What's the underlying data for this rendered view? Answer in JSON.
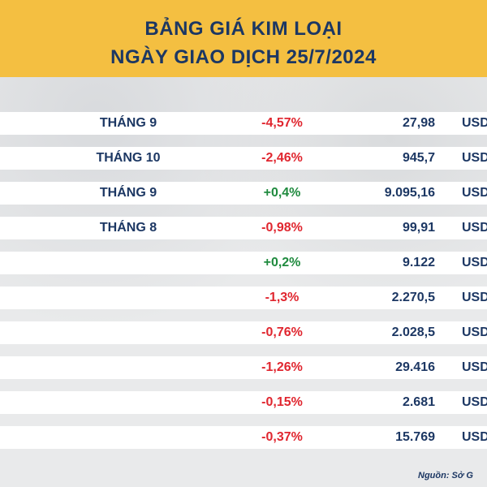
{
  "header": {
    "title_line1": "BẢNG GIÁ KIM LOẠI",
    "title_line2": "NGÀY GIAO DỊCH 25/7/2024"
  },
  "rows": [
    {
      "month": "THÁNG 9",
      "change": "-4,57%",
      "price": "27,98",
      "unit": "USD",
      "direction": "down"
    },
    {
      "month": "THÁNG 10",
      "change": "-2,46%",
      "price": "945,7",
      "unit": "USD",
      "direction": "down"
    },
    {
      "month": "THÁNG 9",
      "change": "+0,4%",
      "price": "9.095,16",
      "unit": "USD",
      "direction": "up"
    },
    {
      "month": "THÁNG 8",
      "change": "-0,98%",
      "price": "99,91",
      "unit": "USD",
      "direction": "down"
    },
    {
      "month": "",
      "change": "+0,2%",
      "price": "9.122",
      "unit": "USD",
      "direction": "up"
    },
    {
      "month": "",
      "change": "-1,3%",
      "price": "2.270,5",
      "unit": "USD",
      "direction": "down"
    },
    {
      "month": "",
      "change": "-0,76%",
      "price": "2.028,5",
      "unit": "USD",
      "direction": "down"
    },
    {
      "month": "",
      "change": "-1,26%",
      "price": "29.416",
      "unit": "USD",
      "direction": "down"
    },
    {
      "month": "",
      "change": "-0,15%",
      "price": "2.681",
      "unit": "USD",
      "direction": "down"
    },
    {
      "month": "",
      "change": "-0,37%",
      "price": "15.769",
      "unit": "USD",
      "direction": "down"
    }
  ],
  "footer": {
    "source": "Nguồn: Sở G"
  },
  "colors": {
    "header_bg": "#f4bf41",
    "title": "#1c3763",
    "negative": "#e0262f",
    "positive": "#1f8a3e"
  }
}
